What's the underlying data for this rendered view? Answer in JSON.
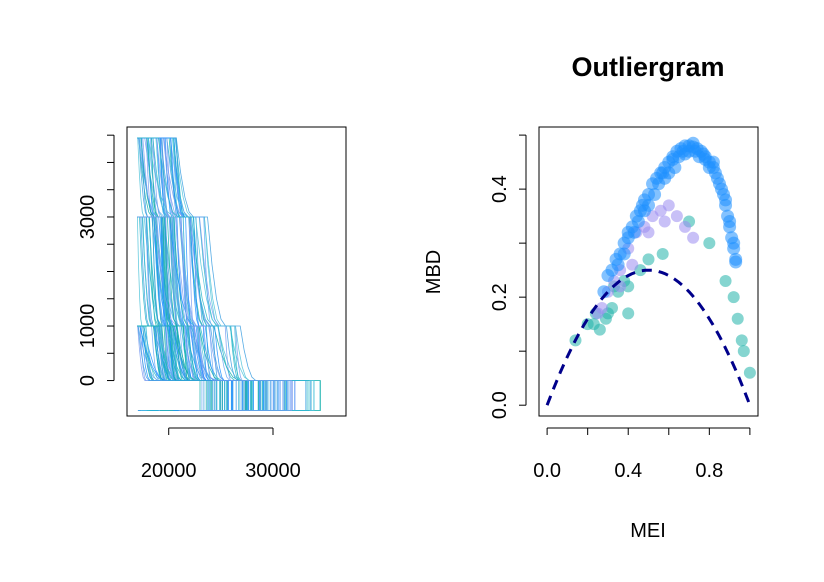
{
  "chart_data": [
    {
      "type": "line",
      "title": "",
      "xlabel": "",
      "ylabel": "",
      "xlim": [
        16000,
        37000
      ],
      "ylim": [
        -650,
        4650
      ],
      "x_ticks": [
        20000,
        30000
      ],
      "y_ticks": [
        0,
        1000,
        3000
      ],
      "y_tick_marks": [
        0,
        500,
        1000,
        1500,
        2000,
        2500,
        3000,
        3500,
        4000,
        4500
      ],
      "grid": false,
      "legend": "none",
      "description_of_series": "many functional curves (step-like declining)",
      "levels": [
        4450,
        3000,
        1000,
        0
      ],
      "floor": -550,
      "x_start_min": 17000,
      "x_start_max": 36500,
      "colors": [
        "#1e90ff",
        "#3a9ee0",
        "#25b5c8",
        "#7b9cf0",
        "#4fc3d9",
        "#6aa8f5",
        "#12b0a8"
      ]
    },
    {
      "type": "scatter",
      "title": "Outliergram",
      "xlabel": "MEI",
      "ylabel": "MBD",
      "xlim": [
        -0.04,
        1.04
      ],
      "ylim": [
        -0.02,
        0.515
      ],
      "x_ticks": [
        0.0,
        0.4,
        0.8
      ],
      "x_tick_marks": [
        0.0,
        0.2,
        0.4,
        0.6,
        0.8,
        1.0
      ],
      "y_ticks": [
        0.0,
        0.2,
        0.4
      ],
      "y_tick_marks": [
        0.0,
        0.1,
        0.2,
        0.3,
        0.4,
        0.5
      ],
      "grid": false,
      "legend": "none",
      "parabola": {
        "a0": -0.0001,
        "a1": 2.0,
        "a2": -2.0,
        "color": "#00008b",
        "style": "dashed"
      },
      "main_points_color": "#1e90ff",
      "purple_points_color": "#9b8cf0",
      "teal_points_color": "#20b2aa",
      "main_points": [
        [
          0.3,
          0.24
        ],
        [
          0.32,
          0.25
        ],
        [
          0.34,
          0.27
        ],
        [
          0.36,
          0.28
        ],
        [
          0.38,
          0.3
        ],
        [
          0.4,
          0.32
        ],
        [
          0.42,
          0.33
        ],
        [
          0.44,
          0.35
        ],
        [
          0.46,
          0.36
        ],
        [
          0.48,
          0.38
        ],
        [
          0.5,
          0.39
        ],
        [
          0.52,
          0.41
        ],
        [
          0.54,
          0.42
        ],
        [
          0.56,
          0.43
        ],
        [
          0.58,
          0.44
        ],
        [
          0.6,
          0.45
        ],
        [
          0.62,
          0.46
        ],
        [
          0.64,
          0.47
        ],
        [
          0.66,
          0.475
        ],
        [
          0.68,
          0.48
        ],
        [
          0.7,
          0.48
        ],
        [
          0.72,
          0.478
        ],
        [
          0.74,
          0.475
        ],
        [
          0.76,
          0.47
        ],
        [
          0.78,
          0.46
        ],
        [
          0.8,
          0.45
        ],
        [
          0.82,
          0.44
        ],
        [
          0.84,
          0.42
        ],
        [
          0.86,
          0.4
        ],
        [
          0.88,
          0.37
        ],
        [
          0.89,
          0.35
        ],
        [
          0.9,
          0.33
        ],
        [
          0.91,
          0.31
        ],
        [
          0.92,
          0.29
        ],
        [
          0.93,
          0.27
        ],
        [
          0.4,
          0.31
        ],
        [
          0.45,
          0.34
        ],
        [
          0.5,
          0.37
        ],
        [
          0.55,
          0.41
        ],
        [
          0.6,
          0.43
        ],
        [
          0.65,
          0.46
        ],
        [
          0.7,
          0.47
        ],
        [
          0.75,
          0.46
        ],
        [
          0.8,
          0.44
        ],
        [
          0.85,
          0.41
        ],
        [
          0.9,
          0.34
        ],
        [
          0.38,
          0.28
        ],
        [
          0.43,
          0.32
        ],
        [
          0.48,
          0.36
        ],
        [
          0.53,
          0.39
        ],
        [
          0.58,
          0.42
        ],
        [
          0.63,
          0.44
        ],
        [
          0.68,
          0.465
        ],
        [
          0.73,
          0.47
        ],
        [
          0.78,
          0.455
        ],
        [
          0.83,
          0.43
        ],
        [
          0.88,
          0.38
        ],
        [
          0.35,
          0.26
        ],
        [
          0.47,
          0.37
        ],
        [
          0.57,
          0.43
        ],
        [
          0.67,
          0.47
        ],
        [
          0.77,
          0.465
        ],
        [
          0.87,
          0.39
        ],
        [
          0.62,
          0.455
        ],
        [
          0.72,
          0.485
        ],
        [
          0.82,
          0.45
        ],
        [
          0.92,
          0.3
        ],
        [
          0.93,
          0.265
        ],
        [
          0.28,
          0.21
        ]
      ],
      "purple_points": [
        [
          0.27,
          0.18
        ],
        [
          0.3,
          0.21
        ],
        [
          0.33,
          0.23
        ],
        [
          0.36,
          0.25
        ],
        [
          0.4,
          0.29
        ],
        [
          0.44,
          0.32
        ],
        [
          0.48,
          0.33
        ],
        [
          0.52,
          0.35
        ],
        [
          0.56,
          0.36
        ],
        [
          0.6,
          0.37
        ],
        [
          0.64,
          0.35
        ],
        [
          0.68,
          0.33
        ],
        [
          0.72,
          0.31
        ],
        [
          0.36,
          0.22
        ],
        [
          0.42,
          0.26
        ],
        [
          0.5,
          0.32
        ],
        [
          0.58,
          0.34
        ],
        [
          0.25,
          0.17
        ]
      ],
      "teal_points": [
        [
          0.14,
          0.12
        ],
        [
          0.2,
          0.15
        ],
        [
          0.24,
          0.17
        ],
        [
          0.26,
          0.14
        ],
        [
          0.29,
          0.16
        ],
        [
          0.32,
          0.18
        ],
        [
          0.35,
          0.21
        ],
        [
          0.4,
          0.22
        ],
        [
          0.46,
          0.25
        ],
        [
          0.5,
          0.27
        ],
        [
          0.57,
          0.28
        ],
        [
          0.7,
          0.34
        ],
        [
          0.8,
          0.3
        ],
        [
          0.88,
          0.23
        ],
        [
          0.92,
          0.2
        ],
        [
          0.94,
          0.16
        ],
        [
          0.96,
          0.12
        ],
        [
          0.97,
          0.1
        ],
        [
          1.0,
          0.06
        ],
        [
          0.33,
          0.22
        ],
        [
          0.38,
          0.23
        ],
        [
          0.3,
          0.17
        ],
        [
          0.23,
          0.15
        ],
        [
          0.4,
          0.17
        ]
      ]
    }
  ]
}
